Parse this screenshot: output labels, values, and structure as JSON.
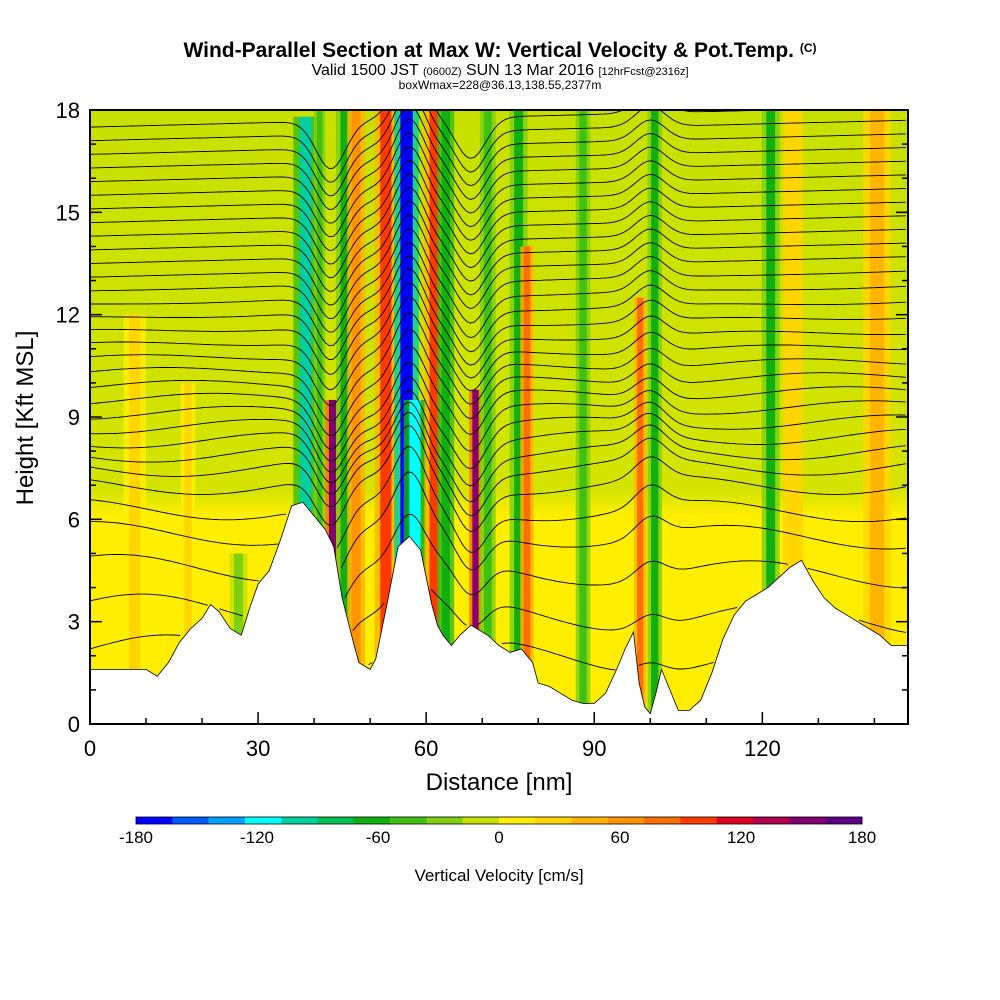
{
  "title": {
    "main": "Wind-Parallel Section at Max W: Vertical Velocity & Pot.Temp.",
    "copyright": "(C)",
    "valid_prefix": "Valid 1500 JST",
    "valid_utc": "(0600Z)",
    "valid_date": "SUN 13 Mar 2016",
    "forecast": "[12hrFcst@2316z]",
    "box": "boxWmax=228@36.13,138.55,2377m"
  },
  "chart_data": {
    "type": "heatmap",
    "xlabel": "Distance [nm]",
    "ylabel": "Height [Kft MSL]",
    "xlim": [
      0,
      146
    ],
    "ylim": [
      0,
      18
    ],
    "xticks": [
      "0",
      "30",
      "60",
      "90",
      "120"
    ],
    "yticks": [
      "0",
      "3",
      "6",
      "9",
      "12",
      "15",
      "18"
    ],
    "grid": false,
    "colorbar": {
      "title": "Vertical Velocity [cm/s]",
      "ticks": [
        "-180",
        "-120",
        "-60",
        "0",
        "60",
        "120",
        "180"
      ],
      "range": [
        -180,
        180
      ],
      "colors": [
        "#0000ff",
        "#005aff",
        "#00a0ff",
        "#00ffff",
        "#00d0a0",
        "#00c050",
        "#10b010",
        "#40c010",
        "#80d010",
        "#c8e000",
        "#ffee00",
        "#ffd500",
        "#ffb400",
        "#ff9400",
        "#ff6e00",
        "#ff3a00",
        "#e00020",
        "#b00050",
        "#800070",
        "#5a0080"
      ]
    },
    "terrain_kft": [
      [
        0,
        1.6
      ],
      [
        10,
        1.6
      ],
      [
        12,
        1.4
      ],
      [
        14,
        1.8
      ],
      [
        16,
        2.4
      ],
      [
        18,
        2.8
      ],
      [
        20,
        3.1
      ],
      [
        21.5,
        3.5
      ],
      [
        23,
        3.3
      ],
      [
        25,
        2.8
      ],
      [
        27,
        2.6
      ],
      [
        28.5,
        3.4
      ],
      [
        30,
        4.1
      ],
      [
        32,
        4.5
      ],
      [
        34,
        5.4
      ],
      [
        36,
        6.4
      ],
      [
        38,
        6.5
      ],
      [
        40,
        6.1
      ],
      [
        42,
        5.7
      ],
      [
        43.5,
        5.2
      ],
      [
        45,
        3.7
      ],
      [
        47,
        2.4
      ],
      [
        48,
        1.8
      ],
      [
        50,
        1.6
      ],
      [
        51,
        1.9
      ],
      [
        53,
        3.5
      ],
      [
        55,
        5.2
      ],
      [
        57,
        5.5
      ],
      [
        59,
        5.1
      ],
      [
        61,
        3.5
      ],
      [
        62,
        2.9
      ],
      [
        63,
        2.6
      ],
      [
        64.5,
        2.3
      ],
      [
        66,
        2.6
      ],
      [
        68,
        2.9
      ],
      [
        71,
        2.6
      ],
      [
        73,
        2.3
      ],
      [
        75,
        2.1
      ],
      [
        77,
        2.2
      ],
      [
        79,
        1.8
      ],
      [
        80,
        1.2
      ],
      [
        82,
        1.1
      ],
      [
        84,
        0.9
      ],
      [
        86,
        0.7
      ],
      [
        88,
        0.6
      ],
      [
        90,
        0.6
      ],
      [
        92,
        0.9
      ],
      [
        94,
        1.6
      ],
      [
        95.5,
        2.2
      ],
      [
        97,
        2.7
      ],
      [
        98,
        1.2
      ],
      [
        99,
        0.5
      ],
      [
        100,
        0.3
      ],
      [
        101,
        0.9
      ],
      [
        102,
        1.6
      ],
      [
        103.5,
        1.0
      ],
      [
        105,
        0.4
      ],
      [
        107,
        0.4
      ],
      [
        109,
        0.7
      ],
      [
        111,
        1.5
      ],
      [
        113,
        2.5
      ],
      [
        115,
        3.2
      ],
      [
        117,
        3.6
      ],
      [
        119,
        3.8
      ],
      [
        121,
        4.0
      ],
      [
        123,
        4.3
      ],
      [
        125,
        4.6
      ],
      [
        127,
        4.8
      ],
      [
        129,
        4.2
      ],
      [
        131,
        3.7
      ],
      [
        133,
        3.4
      ],
      [
        135,
        3.2
      ],
      [
        137,
        3.0
      ],
      [
        139,
        2.8
      ],
      [
        141,
        2.6
      ],
      [
        143,
        2.3
      ],
      [
        146,
        2.3
      ]
    ],
    "wind_cells": [
      {
        "x": 38.5,
        "w": 2.2,
        "v": -95,
        "ytop": 17.8
      },
      {
        "x": 41.0,
        "w": 1.0,
        "v": -40,
        "ytop": 18
      },
      {
        "x": 43.3,
        "w": 1.3,
        "v": 150,
        "ytop": 9.5
      },
      {
        "x": 45.5,
        "w": 1.6,
        "v": -55,
        "ytop": 18
      },
      {
        "x": 47.5,
        "w": 1.6,
        "v": 70,
        "ytop": 18
      },
      {
        "x": 52.8,
        "w": 2.0,
        "v": 90,
        "ytop": 18
      },
      {
        "x": 56.5,
        "w": 2.2,
        "v": -175,
        "ytop": 18
      },
      {
        "x": 58.0,
        "w": 2.0,
        "v": -110,
        "ytop": 9.5
      },
      {
        "x": 61.5,
        "w": 1.8,
        "v": 95,
        "ytop": 18
      },
      {
        "x": 63.5,
        "w": 1.5,
        "v": -70,
        "ytop": 18
      },
      {
        "x": 68.8,
        "w": 1.1,
        "v": 150,
        "ytop": 9.8
      },
      {
        "x": 71.0,
        "w": 1.4,
        "v": -45,
        "ytop": 18
      },
      {
        "x": 76.5,
        "w": 1.6,
        "v": -55,
        "ytop": 18
      },
      {
        "x": 78.0,
        "w": 1.2,
        "v": 80,
        "ytop": 14
      },
      {
        "x": 88.0,
        "w": 1.3,
        "v": -40,
        "ytop": 18
      },
      {
        "x": 98.2,
        "w": 1.1,
        "v": 80,
        "ytop": 12.5
      },
      {
        "x": 100.8,
        "w": 1.3,
        "v": -60,
        "ytop": 18
      },
      {
        "x": 121.5,
        "w": 1.6,
        "v": -65,
        "ytop": 18
      },
      {
        "x": 125.5,
        "w": 1.8,
        "v": 35,
        "ytop": 18
      },
      {
        "x": 140.5,
        "w": 2.5,
        "v": 45,
        "ytop": 18
      },
      {
        "x": 8.0,
        "w": 2.0,
        "v": 25,
        "ytop": 12
      },
      {
        "x": 17.5,
        "w": 1.3,
        "v": 30,
        "ytop": 10
      },
      {
        "x": 26.5,
        "w": 1.6,
        "v": -25,
        "ytop": 5.0
      }
    ],
    "theta_contours": {
      "base_heights_kft": [
        2.2,
        3.4,
        4.6,
        5.6,
        6.3,
        7.0,
        7.5,
        7.9,
        8.3,
        8.7,
        9.1,
        9.5,
        9.9,
        10.3,
        10.7,
        11.1,
        11.5,
        11.9,
        12.3,
        12.7,
        13.1,
        13.5,
        13.9,
        14.3,
        14.7,
        15.1,
        15.5,
        15.9,
        16.3,
        16.7,
        17.1,
        17.5
      ],
      "wave_centers_nm": [
        43,
        57,
        68,
        100
      ],
      "wave_amplitudes_kft": [
        -1.4,
        1.6,
        -1.2,
        0.6
      ]
    }
  }
}
